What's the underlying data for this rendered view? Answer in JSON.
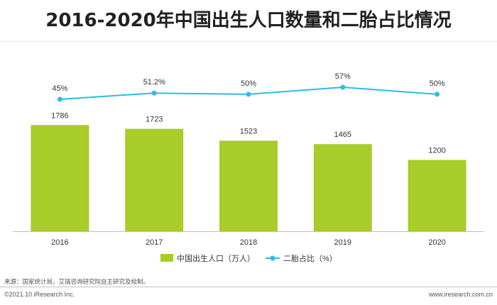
{
  "page": {
    "title": "2016-2020年中国出生人口数量和二胎占比情况",
    "source": "来源：国家统计局，艾瑞咨询研究院自主研究及绘制。",
    "copyright": "©2021.10 iResearch Inc.",
    "website": "www.iresearch.com.cn"
  },
  "colors": {
    "bar": "#a8cc2a",
    "line": "#2bbcea",
    "axis": "#bfbfbf",
    "text": "#333333"
  },
  "chart_data": {
    "type": "bar+line",
    "title": "2016-2020年中国出生人口数量和二胎占比情况",
    "categories": [
      "2016",
      "2017",
      "2018",
      "2019",
      "2020"
    ],
    "series": [
      {
        "name": "中国出生人口（万人）",
        "type": "bar",
        "values": [
          1786,
          1723,
          1523,
          1465,
          1200
        ],
        "labels": [
          "1786",
          "1723",
          "1523",
          "1465",
          "1200"
        ]
      },
      {
        "name": "二胎占比（%）",
        "type": "line",
        "values": [
          45,
          51.2,
          50,
          57,
          50
        ],
        "labels": [
          "45%",
          "51.2%",
          "50%",
          "57%",
          "50%"
        ]
      }
    ],
    "legend": {
      "position": "bottom",
      "items": [
        {
          "label": "中国出生人口（万人）",
          "marker": "bar"
        },
        {
          "label": "二胎占比（%）",
          "marker": "line"
        }
      ]
    },
    "grid": false
  }
}
